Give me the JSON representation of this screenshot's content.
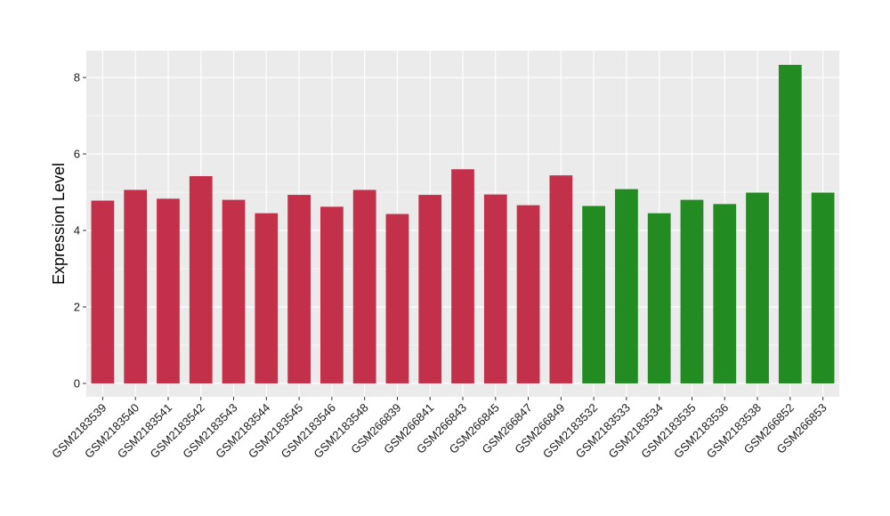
{
  "chart_data": {
    "type": "bar",
    "title": "",
    "xlabel": "",
    "ylabel": "Expression Level",
    "ylim": [
      -0.35,
      8.7
    ],
    "yticks": [
      0,
      2,
      4,
      6,
      8
    ],
    "grid": true,
    "categories": [
      "GSM2183539",
      "GSM2183540",
      "GSM2183541",
      "GSM2183542",
      "GSM2183543",
      "GSM2183544",
      "GSM2183545",
      "GSM2183546",
      "GSM2183548",
      "GSM266839",
      "GSM266841",
      "GSM266843",
      "GSM266845",
      "GSM266847",
      "GSM266849",
      "GSM2183532",
      "GSM2183533",
      "GSM2183534",
      "GSM2183535",
      "GSM2183536",
      "GSM2183538",
      "GSM266852",
      "GSM266853"
    ],
    "values": [
      4.78,
      5.06,
      4.83,
      5.42,
      4.8,
      4.45,
      4.93,
      4.62,
      5.06,
      4.43,
      4.93,
      5.6,
      4.94,
      4.66,
      5.44,
      4.64,
      5.08,
      4.45,
      4.8,
      4.69,
      4.99,
      8.33,
      4.99
    ],
    "bar_colors": [
      "#c3304a",
      "#c3304a",
      "#c3304a",
      "#c3304a",
      "#c3304a",
      "#c3304a",
      "#c3304a",
      "#c3304a",
      "#c3304a",
      "#c3304a",
      "#c3304a",
      "#c3304a",
      "#c3304a",
      "#c3304a",
      "#c3304a",
      "#228b22",
      "#228b22",
      "#228b22",
      "#228b22",
      "#228b22",
      "#228b22",
      "#228b22",
      "#228b22"
    ],
    "panel_background": "#ebebeb",
    "grid_color": "#ffffff"
  }
}
